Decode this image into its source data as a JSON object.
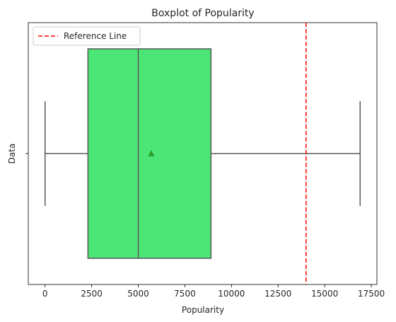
{
  "chart_data": {
    "type": "box",
    "title": "Boxplot of Popularity",
    "xlabel": "Popularity",
    "ylabel": "Data",
    "xlim": [
      -900,
      17800
    ],
    "x_ticks": [
      0,
      2500,
      5000,
      7500,
      10000,
      12500,
      15000,
      17500
    ],
    "x_tick_labels": [
      "0",
      "2500",
      "5000",
      "7500",
      "10000",
      "12500",
      "15000",
      "17500"
    ],
    "y_tick_labels": [
      ""
    ],
    "grid": false,
    "box": {
      "whisker_low": 0,
      "q1": 2300,
      "median": 5000,
      "q3": 8900,
      "whisker_high": 16900,
      "mean": 5700,
      "fill_color": "#4ce676",
      "edge_color": "#5a5a5a",
      "mean_color": "#2ca02c"
    },
    "reference_line": {
      "x": 14000,
      "color": "#ff0000",
      "style": "dashed",
      "label": "Reference Line"
    },
    "legend": {
      "position": "top-left",
      "entries": [
        "Reference Line"
      ]
    }
  }
}
